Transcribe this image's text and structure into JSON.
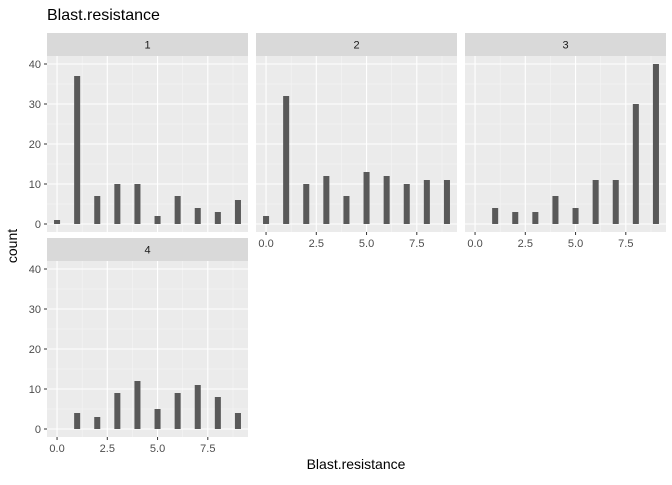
{
  "chart_data": {
    "type": "bar",
    "title": "Blast.resistance",
    "xlabel": "Blast.resistance",
    "ylabel": "count",
    "xlim": [
      -0.5,
      9.5
    ],
    "ylim": [
      -2,
      42
    ],
    "x_ticks": [
      0,
      2.5,
      5,
      7.5
    ],
    "x_tick_labels": [
      "0.0",
      "2.5",
      "5.0",
      "7.5"
    ],
    "y_ticks": [
      0,
      10,
      20,
      30,
      40
    ],
    "y_tick_labels": [
      "0",
      "10",
      "20",
      "30",
      "40"
    ],
    "grid": true,
    "bar_color": "#595959",
    "panel_background": "#ebebeb",
    "strip_background": "#d9d9d9",
    "facets": [
      {
        "label": "1",
        "x": [
          0,
          1,
          2,
          3,
          4,
          5,
          6,
          7,
          8,
          9
        ],
        "values": [
          1,
          37,
          7,
          10,
          10,
          2,
          7,
          4,
          3,
          6
        ]
      },
      {
        "label": "2",
        "x": [
          0,
          1,
          2,
          3,
          4,
          5,
          6,
          7,
          8,
          9
        ],
        "values": [
          2,
          32,
          10,
          12,
          7,
          13,
          12,
          10,
          11,
          11
        ]
      },
      {
        "label": "3",
        "x": [
          1,
          2,
          3,
          4,
          5,
          6,
          7,
          8,
          9
        ],
        "values": [
          4,
          3,
          3,
          7,
          4,
          11,
          11,
          30,
          40
        ]
      },
      {
        "label": "4",
        "x": [
          1,
          2,
          3,
          4,
          5,
          6,
          7,
          8,
          9
        ],
        "values": [
          4,
          3,
          9,
          12,
          5,
          9,
          11,
          8,
          4
        ]
      }
    ]
  }
}
